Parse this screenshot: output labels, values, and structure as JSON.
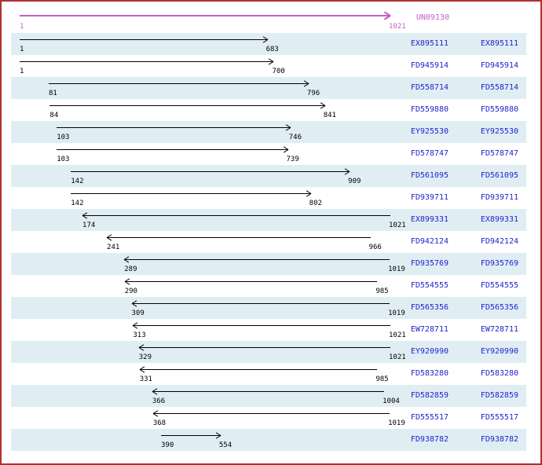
{
  "frame": {
    "border_color": "#b03030",
    "background_color": "#ffffff"
  },
  "colors": {
    "reference_magenta": "#c361c3",
    "read_link_blue": "#2222cc",
    "read_arrow_black": "#000000",
    "row_band_blue": "#e0eef4"
  },
  "ruler": {
    "label": "UN09130",
    "start": "1",
    "end": "1021"
  },
  "chart_data": {
    "type": "bar",
    "subtype": "horizontal-span-alignment",
    "title": "",
    "xlabel": "",
    "ylabel": "",
    "x_range": [
      1,
      1021
    ],
    "grid": false,
    "legend": "none",
    "reference": {
      "name": "UN09130",
      "start": 1,
      "end": 1021,
      "direction": "forward"
    },
    "series": [
      {
        "name": "EX895111",
        "start": 1,
        "end": 683,
        "direction": "forward"
      },
      {
        "name": "FD945914",
        "start": 1,
        "end": 700,
        "direction": "forward"
      },
      {
        "name": "FD558714",
        "start": 81,
        "end": 796,
        "direction": "forward"
      },
      {
        "name": "FD559880",
        "start": 84,
        "end": 841,
        "direction": "forward"
      },
      {
        "name": "EY925530",
        "start": 103,
        "end": 746,
        "direction": "forward"
      },
      {
        "name": "FD578747",
        "start": 103,
        "end": 739,
        "direction": "forward"
      },
      {
        "name": "FD561095",
        "start": 142,
        "end": 909,
        "direction": "forward"
      },
      {
        "name": "FD939711",
        "start": 142,
        "end": 802,
        "direction": "forward"
      },
      {
        "name": "EX899331",
        "start": 174,
        "end": 1021,
        "direction": "reverse"
      },
      {
        "name": "FD942124",
        "start": 241,
        "end": 966,
        "direction": "reverse"
      },
      {
        "name": "FD935769",
        "start": 289,
        "end": 1019,
        "direction": "reverse"
      },
      {
        "name": "FD554555",
        "start": 290,
        "end": 985,
        "direction": "reverse"
      },
      {
        "name": "FD565356",
        "start": 309,
        "end": 1019,
        "direction": "reverse"
      },
      {
        "name": "EW728711",
        "start": 313,
        "end": 1021,
        "direction": "reverse"
      },
      {
        "name": "EY920990",
        "start": 329,
        "end": 1021,
        "direction": "reverse"
      },
      {
        "name": "FD583280",
        "start": 331,
        "end": 985,
        "direction": "reverse"
      },
      {
        "name": "FD582859",
        "start": 366,
        "end": 1004,
        "direction": "reverse"
      },
      {
        "name": "FD555517",
        "start": 368,
        "end": 1019,
        "direction": "reverse"
      },
      {
        "name": "FD938782",
        "start": 390,
        "end": 554,
        "direction": "forward"
      }
    ]
  }
}
